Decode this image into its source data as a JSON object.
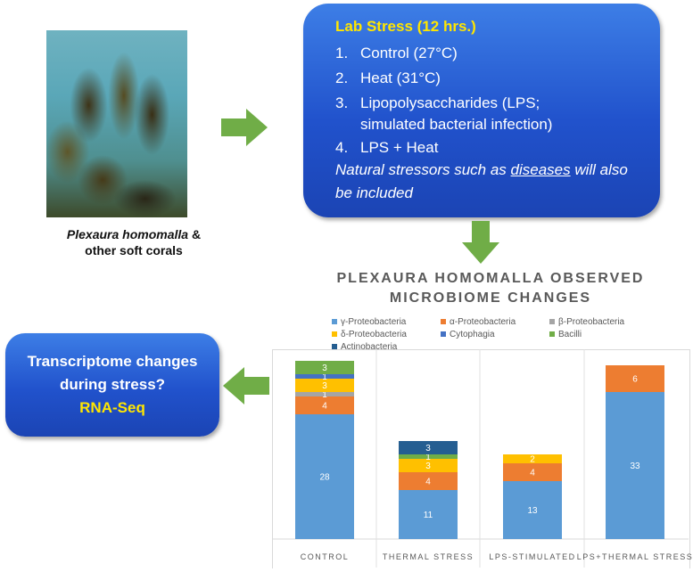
{
  "photo": {
    "caption_species": "Plexaura homomalla",
    "caption_amp": " &",
    "caption_line2": "other soft corals"
  },
  "lab_stress": {
    "title": "Lab Stress (12 hrs.)",
    "items": [
      {
        "num": "1.",
        "text": "Control (27°C)"
      },
      {
        "num": "2.",
        "text": "Heat (31°C)"
      },
      {
        "num": "3.",
        "text": "Lipopolysaccharides (LPS;"
      },
      {
        "num": "",
        "text": "simulated bacterial infection)"
      },
      {
        "num": "4.",
        "text": "LPS + Heat"
      }
    ],
    "note_before": "Natural stressors such as ",
    "note_underlined": "diseases",
    "note_after": " will also be included"
  },
  "rna_box": {
    "line1": "Transcriptome changes",
    "line2": "during stress?",
    "line3": "RNA-Seq"
  },
  "colors": {
    "gamma": "#5b9bd5",
    "alpha": "#ed7d31",
    "beta": "#a5a5a5",
    "delta": "#ffc000",
    "cytophagia": "#4472c4",
    "bacilli": "#70ad47",
    "actino": "#255e91",
    "box_title_yellow": "#ffe600",
    "arrow_green": "#70ad47"
  },
  "chart_data": {
    "type": "bar",
    "stacked": true,
    "title": "PLEXAURA HOMOMALLA OBSERVED MICROBIOME CHANGES",
    "categories": [
      "CONTROL",
      "THERMAL STRESS",
      "LPS-STIMULATED",
      "LPS+THERMAL STRESS"
    ],
    "series": [
      {
        "name": "γ-Proteobacteria",
        "color": "#5b9bd5",
        "values": [
          28,
          11,
          13,
          33
        ]
      },
      {
        "name": "α-Proteobacteria",
        "color": "#ed7d31",
        "values": [
          4,
          4,
          4,
          6
        ]
      },
      {
        "name": "β-Proteobacteria",
        "color": "#a5a5a5",
        "values": [
          1,
          0,
          0,
          0
        ]
      },
      {
        "name": "δ-Proteobacteria",
        "color": "#ffc000",
        "values": [
          3,
          3,
          2,
          0
        ]
      },
      {
        "name": "Cytophagia",
        "color": "#4472c4",
        "values": [
          1,
          0,
          0,
          0
        ]
      },
      {
        "name": "Bacilli",
        "color": "#70ad47",
        "values": [
          3,
          1,
          0,
          0
        ]
      },
      {
        "name": "Actinobacteria",
        "color": "#255e91",
        "values": [
          0,
          3,
          0,
          0
        ]
      }
    ],
    "legend_position": "top",
    "grid": false
  }
}
